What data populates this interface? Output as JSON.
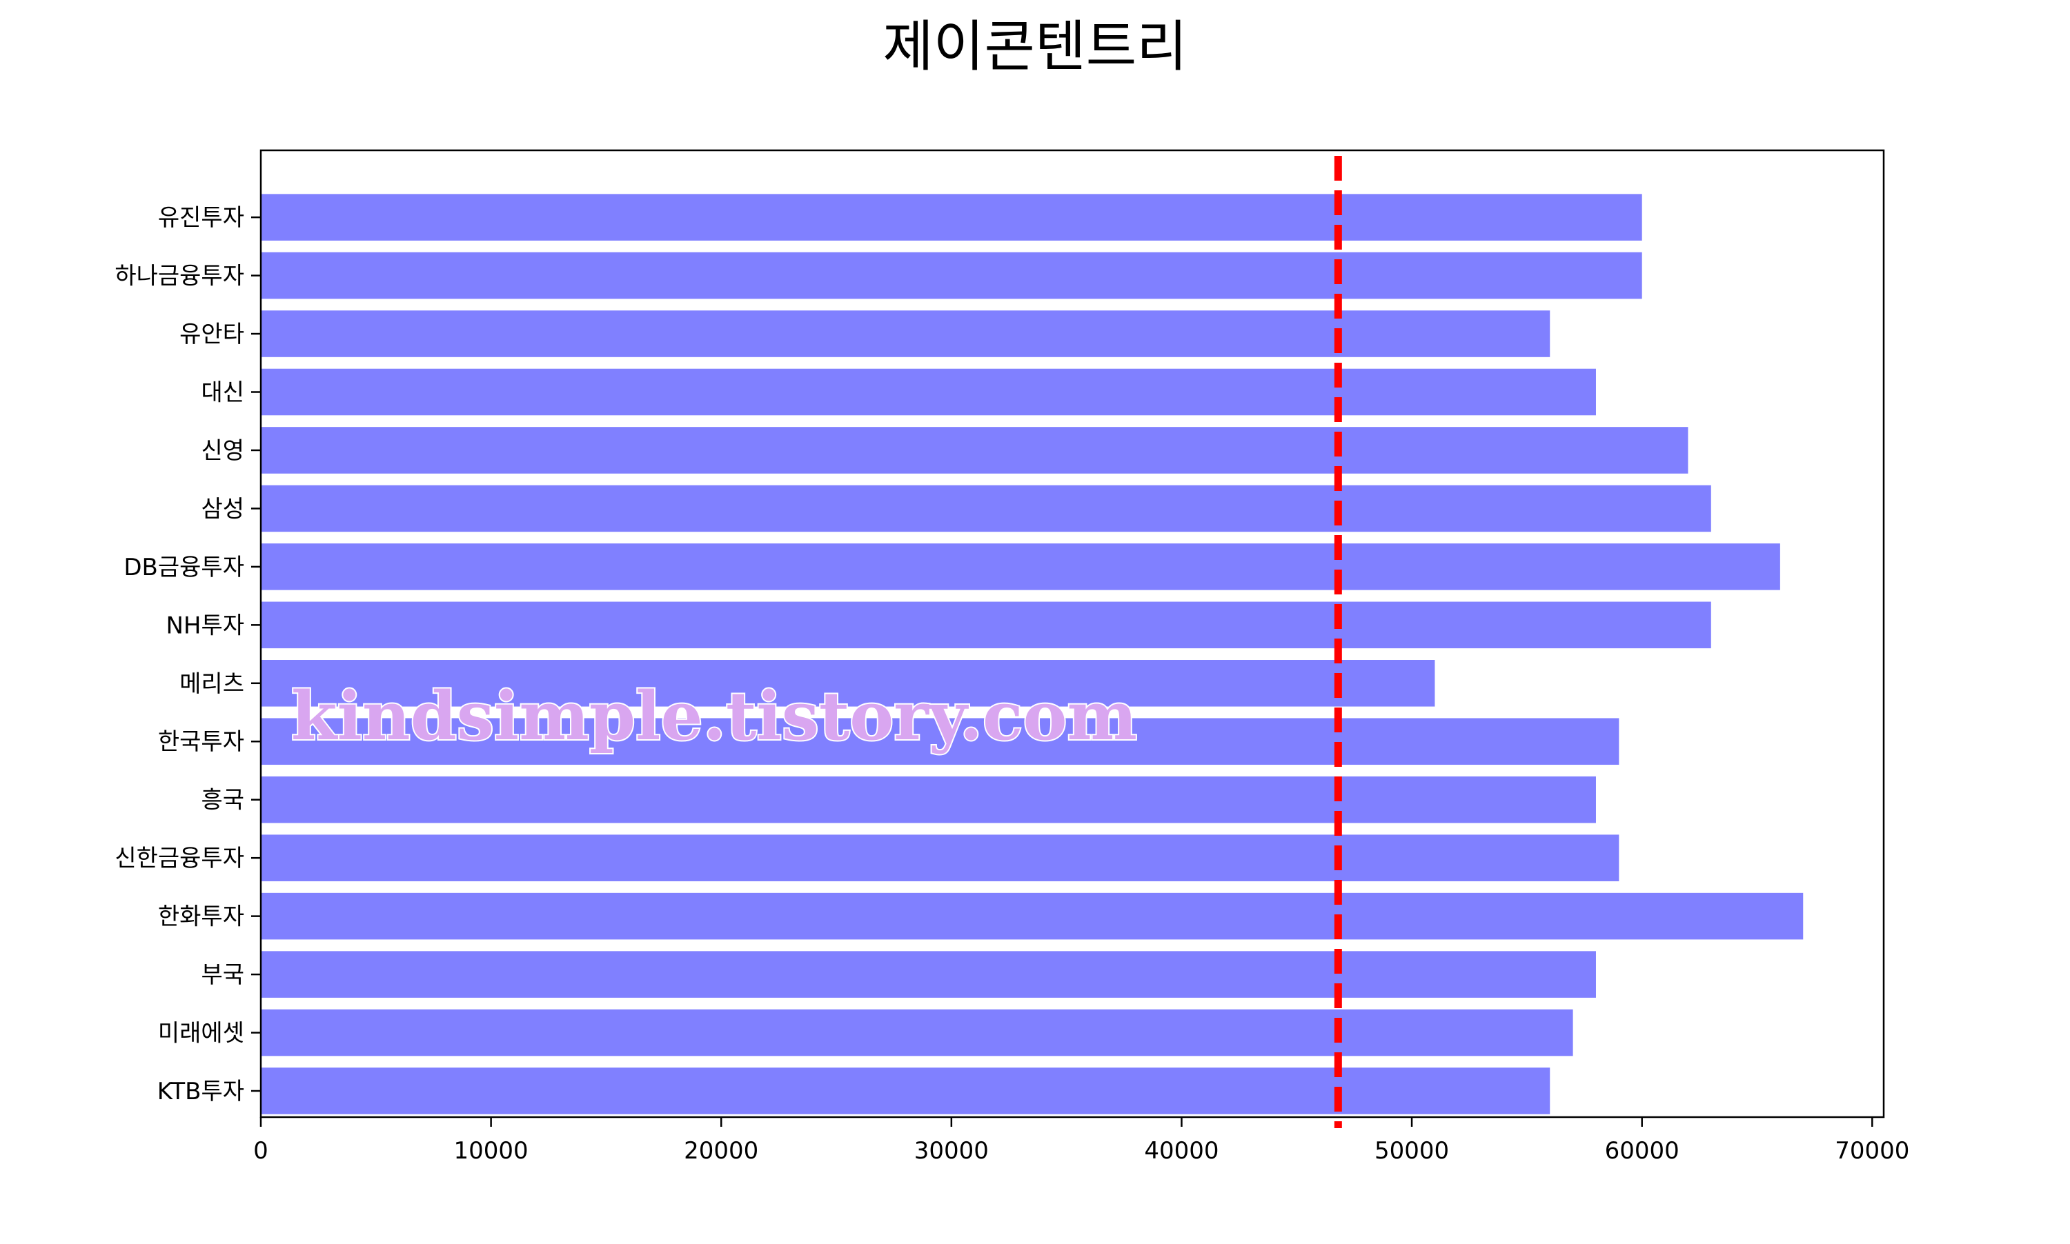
{
  "chart_data": {
    "type": "bar",
    "orientation": "horizontal",
    "title": "제이콘텐트리",
    "xlabel": "",
    "ylabel": "",
    "categories": [
      "유진투자",
      "하나금융투자",
      "유안타",
      "대신",
      "신영",
      "삼성",
      "DB금융투자",
      "NH투자",
      "메리츠",
      "한국투자",
      "흥국",
      "신한금융투자",
      "한화투자",
      "부국",
      "미래에셋",
      "KTB투자"
    ],
    "values": [
      60000,
      60000,
      56000,
      58000,
      62000,
      63000,
      66000,
      63000,
      51000,
      59000,
      58000,
      59000,
      67000,
      58000,
      57000,
      56000
    ],
    "xlim": [
      0,
      70500
    ],
    "xticks": [
      "0",
      "10000",
      "20000",
      "30000",
      "40000",
      "50000",
      "60000",
      "70000"
    ],
    "reference_line": {
      "value": 46800,
      "style": "dashed"
    },
    "grid": false,
    "bar_color": "#8080ff",
    "line_color": "#ff0000"
  },
  "watermark": "kindsimple.tistory.com"
}
